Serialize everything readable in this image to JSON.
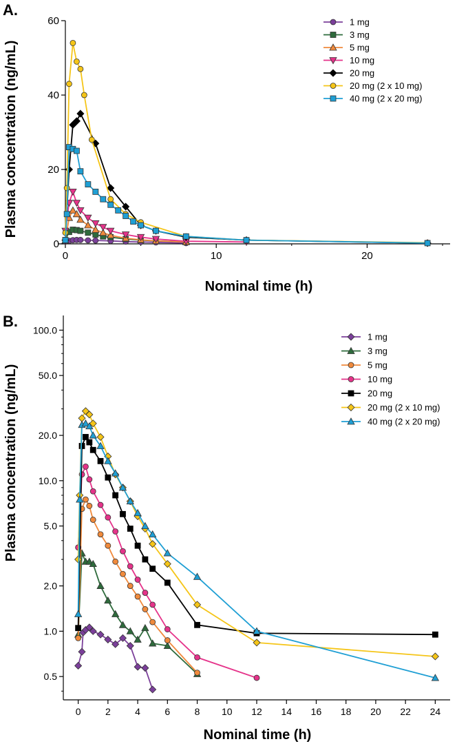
{
  "chart_data": [
    {
      "panel_label": "A.",
      "type": "line",
      "scale": "linear",
      "xlabel": "Nominal time (h)",
      "ylabel": "Plasma concentration (ng/mL)",
      "xlim": [
        -0.5,
        25.5
      ],
      "ylim": [
        0,
        60
      ],
      "xticks": [
        0,
        10,
        20
      ],
      "yticks": [
        0,
        20,
        40,
        60
      ],
      "legend_position": "top-right",
      "series": [
        {
          "name": "1 mg",
          "color": "#7b3f9a",
          "marker": "circle",
          "x": [
            0,
            0.25,
            0.5,
            0.75,
            1,
            1.5,
            2,
            3,
            4,
            5,
            6,
            8
          ],
          "y": [
            0.6,
            0.8,
            1.0,
            1.05,
            1.05,
            0.95,
            0.9,
            0.8,
            0.6,
            0.5,
            0.4,
            0.2
          ]
        },
        {
          "name": "3 mg",
          "color": "#2e6b3c",
          "marker": "square",
          "x": [
            0,
            0.25,
            0.5,
            0.75,
            1,
            1.5,
            2,
            2.5,
            3,
            4,
            5,
            6,
            8
          ],
          "y": [
            1.0,
            3.2,
            3.8,
            3.7,
            3.5,
            3.0,
            2.5,
            2.0,
            1.8,
            1.3,
            1.0,
            0.8,
            0.5
          ]
        },
        {
          "name": "5 mg",
          "color": "#f08a3c",
          "marker": "triangle-up",
          "x": [
            0,
            0.25,
            0.5,
            0.75,
            1,
            1.5,
            2,
            2.5,
            3,
            4,
            5,
            6,
            8
          ],
          "y": [
            0.9,
            7.0,
            9.0,
            8.0,
            6.5,
            5.0,
            3.8,
            3.0,
            2.3,
            1.5,
            1.1,
            0.8,
            0.5
          ]
        },
        {
          "name": "10 mg",
          "color": "#e5338a",
          "marker": "triangle-down",
          "x": [
            0,
            0.25,
            0.5,
            0.75,
            1,
            1.5,
            2,
            2.5,
            3,
            4,
            5,
            6,
            8,
            12
          ],
          "y": [
            3.5,
            11.0,
            14.0,
            11.0,
            9.0,
            7.0,
            5.5,
            4.5,
            3.5,
            2.5,
            1.8,
            1.3,
            0.7,
            0.5
          ]
        },
        {
          "name": "20 mg",
          "color": "#000000",
          "marker": "diamond",
          "x": [
            0,
            0.25,
            0.5,
            0.75,
            1,
            2,
            3,
            4,
            5,
            6,
            8,
            12,
            24
          ],
          "y": [
            1.0,
            20.0,
            32.0,
            33.0,
            35.0,
            27.0,
            15.0,
            10.0,
            5.0,
            3.5,
            1.8,
            1.0,
            0.2
          ]
        },
        {
          "name": "20 mg (2 x 10 mg)",
          "color": "#f5c518",
          "marker": "circle-open",
          "x": [
            0,
            0.1,
            0.25,
            0.5,
            0.75,
            1,
            1.25,
            1.75,
            3,
            4,
            5,
            8,
            12,
            24
          ],
          "y": [
            3.0,
            15.0,
            43.0,
            54.0,
            49.0,
            47.0,
            40.0,
            28.0,
            12.0,
            8.0,
            5.8,
            2.0,
            1.0,
            0.3
          ]
        },
        {
          "name": "40 mg (2 x 20 mg)",
          "color": "#1f9fd4",
          "marker": "square",
          "x": [
            0,
            0.1,
            0.25,
            0.5,
            0.75,
            1,
            1.5,
            2,
            2.5,
            3,
            3.5,
            4,
            4.5,
            5,
            6,
            8,
            12,
            24
          ],
          "y": [
            1.0,
            8.0,
            26.0,
            25.5,
            25.0,
            19.5,
            16.0,
            14.0,
            12.0,
            10.5,
            9.0,
            7.5,
            6.0,
            5.0,
            3.5,
            2.0,
            1.0,
            0.2
          ]
        }
      ]
    },
    {
      "panel_label": "B.",
      "type": "line",
      "scale": "log",
      "xlabel": "Nominal time (h)",
      "ylabel": "Plasma concentration (ng/mL)",
      "xlim": [
        -1,
        25
      ],
      "ylim": [
        0.35,
        120
      ],
      "xticks": [
        0,
        2,
        4,
        6,
        8,
        10,
        12,
        14,
        16,
        18,
        20,
        22,
        24
      ],
      "yticks": [
        0.5,
        1,
        2,
        5,
        10,
        20,
        50,
        100
      ],
      "ytick_labels": [
        "0.5",
        "1.0",
        "2.0",
        "5.0",
        "10.0",
        "20.0",
        "50.0",
        "100.0"
      ],
      "legend_position": "top-right",
      "series": [
        {
          "name": "1 mg",
          "color": "#7b3f9a",
          "marker": "diamond",
          "x": [
            0,
            0.25,
            0.33,
            0.5,
            0.75,
            1,
            1.5,
            2,
            2.5,
            3,
            3.5,
            4,
            4.5,
            5
          ],
          "y": [
            0.59,
            0.73,
            0.98,
            1.02,
            1.06,
            1.0,
            0.95,
            0.88,
            0.82,
            0.9,
            0.8,
            0.58,
            0.57,
            0.41
          ]
        },
        {
          "name": "3 mg",
          "color": "#2e6b3c",
          "marker": "triangle-up",
          "x": [
            0,
            0.25,
            0.5,
            0.75,
            1,
            1.5,
            2,
            2.5,
            3,
            3.5,
            4,
            4.5,
            5,
            6,
            8
          ],
          "y": [
            0.95,
            3.3,
            2.9,
            2.9,
            2.8,
            2.0,
            1.6,
            1.3,
            1.1,
            1.0,
            0.88,
            1.05,
            0.83,
            0.8,
            0.52
          ]
        },
        {
          "name": "5 mg",
          "color": "#f08a3c",
          "marker": "circle",
          "x": [
            0,
            0.25,
            0.5,
            0.75,
            1,
            1.5,
            2,
            2.5,
            3,
            3.5,
            4,
            4.5,
            5,
            6,
            8
          ],
          "y": [
            0.9,
            6.5,
            7.5,
            6.8,
            5.5,
            4.4,
            3.7,
            2.9,
            2.4,
            2.0,
            1.7,
            1.4,
            1.15,
            0.87,
            0.53
          ]
        },
        {
          "name": "10 mg",
          "color": "#e5338a",
          "marker": "circle",
          "x": [
            0,
            0.25,
            0.5,
            0.75,
            1,
            1.5,
            2,
            2.5,
            3,
            3.5,
            4,
            4.5,
            5,
            6,
            8,
            12
          ],
          "y": [
            3.6,
            11.0,
            12.4,
            10.2,
            8.5,
            6.9,
            5.7,
            4.6,
            3.4,
            2.7,
            2.2,
            1.8,
            1.5,
            1.03,
            0.67,
            0.49
          ]
        },
        {
          "name": "20 mg",
          "color": "#000000",
          "marker": "square",
          "x": [
            0,
            0.25,
            0.5,
            0.75,
            1,
            1.5,
            2,
            2.5,
            3,
            3.5,
            4,
            4.5,
            5,
            6,
            8,
            12,
            24
          ],
          "y": [
            1.05,
            17.0,
            19.5,
            18.0,
            16.0,
            13.5,
            10.5,
            8.0,
            6.0,
            4.8,
            3.7,
            3.0,
            2.6,
            2.1,
            1.1,
            0.97,
            0.95
          ]
        },
        {
          "name": "20 mg (2 x 10 mg)",
          "color": "#f5c518",
          "marker": "diamond-open",
          "x": [
            0,
            0.1,
            0.25,
            0.5,
            0.75,
            1,
            1.5,
            2,
            2.5,
            3,
            3.5,
            4,
            4.5,
            5,
            6,
            8,
            12,
            24
          ],
          "y": [
            3.0,
            8.0,
            26.0,
            29.0,
            27.5,
            24.0,
            19.5,
            14.5,
            11.0,
            9.0,
            7.3,
            5.8,
            4.8,
            3.8,
            2.8,
            1.5,
            0.84,
            0.68
          ]
        },
        {
          "name": "40 mg (2 x 20 mg)",
          "color": "#1f9fd4",
          "marker": "triangle-up",
          "x": [
            0,
            0.1,
            0.25,
            0.5,
            0.75,
            1,
            1.5,
            2,
            2.5,
            3,
            3.5,
            4,
            4.5,
            5,
            6,
            8,
            12,
            24
          ],
          "y": [
            1.3,
            7.5,
            23.5,
            24.0,
            23.0,
            20.0,
            17.0,
            13.5,
            11.2,
            9.0,
            7.3,
            6.1,
            5.0,
            4.4,
            3.3,
            2.3,
            1.0,
            0.49
          ]
        }
      ]
    }
  ]
}
